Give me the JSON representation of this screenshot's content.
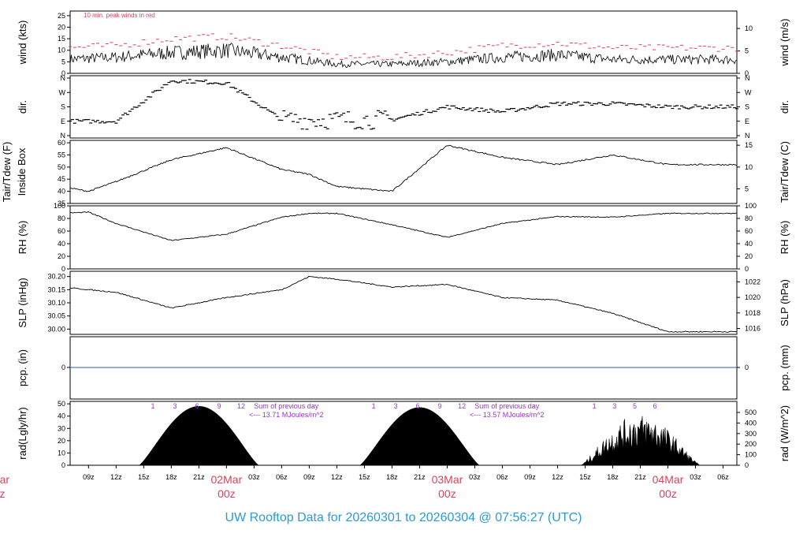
{
  "footer": {
    "title": "UW Rooftop Data for 20260301  to  20260304 @ 07:56:27  (UTC)"
  },
  "x_axis": {
    "hour_labels": [
      "09z",
      "12z",
      "15z",
      "18z",
      "21z",
      "03z",
      "06z",
      "09z",
      "12z",
      "15z",
      "18z",
      "21z",
      "03z",
      "06z",
      "09z",
      "12z",
      "15z",
      "18z",
      "21z",
      "03z",
      "06z"
    ],
    "date_labels": [
      {
        "date": "02Mar",
        "time": "00z"
      },
      {
        "date": "03Mar",
        "time": "00z"
      },
      {
        "date": "04Mar",
        "time": "00z"
      }
    ],
    "cut_date": "Mar",
    "cut_time": "z"
  },
  "colors": {
    "wind": "#000000",
    "gust": "#e0405a",
    "precip": "#2a5db0",
    "date": "#e0405a",
    "annotation": "#9933cc",
    "title": "#2a9bd6"
  },
  "chart_data": [
    {
      "type": "line",
      "panel": "wind",
      "ylabel_left": "wind (kts)",
      "ylabel_right": "wind (m/s)",
      "yticks_left": [
        "0",
        "5",
        "10",
        "15",
        "20",
        "25"
      ],
      "ylim": [
        0,
        27
      ],
      "yticks_right": [
        "0",
        "5",
        "10"
      ],
      "right_values": [
        0,
        5,
        10
      ],
      "annotation": "10 min. peak winds in red",
      "x": [
        0,
        6,
        12,
        18,
        24,
        30,
        36,
        42,
        48,
        54,
        60,
        66,
        72
      ],
      "series": [
        {
          "values": [
            6,
            6,
            7,
            9,
            10,
            7,
            4,
            4,
            5,
            7,
            8,
            6,
            6
          ]
        },
        {
          "values": [
            11,
            11,
            12,
            15,
            16,
            12,
            7,
            7,
            9,
            12,
            13,
            11,
            11
          ]
        }
      ]
    },
    {
      "type": "scatter",
      "panel": "direction",
      "ylabel_left": "dir.",
      "ylabel_right": "dir.",
      "yticks_left": [
        "N",
        "E",
        "S",
        "W",
        "N"
      ],
      "x": [
        0,
        6,
        12,
        18,
        24,
        30,
        36,
        42,
        48,
        54,
        60,
        66,
        72
      ],
      "values": [
        360,
        90,
        90,
        345,
        330,
        100,
        100,
        100,
        180,
        150,
        200,
        200,
        180
      ]
    },
    {
      "type": "line",
      "panel": "temperature",
      "ylabel_left": "Tair/Tdew (F)",
      "ylabel_left2": "Inside Box",
      "ylabel_right": "Tair/Tdew (C)",
      "yticks_left": [
        "35",
        "40",
        "45",
        "50",
        "55",
        "60"
      ],
      "ylim": [
        35,
        61
      ],
      "yticks_right": [
        "5",
        "10",
        "15"
      ],
      "right_values": [
        5,
        10,
        15
      ],
      "x": [
        0,
        6,
        9,
        12,
        18,
        24,
        30,
        33,
        36,
        42,
        48,
        54,
        60,
        66,
        72
      ],
      "values": [
        44,
        42,
        40,
        44,
        53,
        58,
        49,
        47,
        42,
        40,
        59,
        54,
        51,
        55,
        51
      ]
    },
    {
      "type": "line",
      "panel": "humidity",
      "ylabel_left": "RH (%)",
      "ylabel_right": "RH (%)",
      "yticks_left": [
        "0",
        "20",
        "40",
        "60",
        "80",
        "100"
      ],
      "ylim": [
        0,
        100
      ],
      "yticks_right": [
        "0",
        "20",
        "40",
        "60",
        "80",
        "100"
      ],
      "right_values": [
        0,
        20,
        40,
        60,
        80,
        100
      ],
      "x": [
        0,
        6,
        9,
        12,
        18,
        24,
        30,
        33,
        36,
        42,
        48,
        54,
        60,
        66,
        72
      ],
      "values": [
        80,
        88,
        90,
        72,
        45,
        55,
        82,
        88,
        88,
        70,
        50,
        72,
        83,
        82,
        88
      ]
    },
    {
      "type": "line",
      "panel": "pressure",
      "ylabel_left": "SLP (inHg)",
      "ylabel_right": "SLP (hPa)",
      "yticks_left": [
        "30.00",
        "30.05",
        "30.10",
        "30.15",
        "30.20"
      ],
      "ylim": [
        29.98,
        30.22
      ],
      "yticks_right": [
        "1016",
        "1018",
        "1020",
        "1022"
      ],
      "right_values": [
        1016,
        1018,
        1020,
        1022
      ],
      "x": [
        0,
        6,
        12,
        18,
        24,
        30,
        33,
        36,
        42,
        48,
        54,
        60,
        66,
        72
      ],
      "values": [
        30.16,
        30.16,
        30.14,
        30.08,
        30.12,
        30.15,
        30.2,
        30.19,
        30.16,
        30.17,
        30.12,
        30.11,
        30.06,
        29.99
      ]
    },
    {
      "type": "line",
      "panel": "precipitation",
      "ylabel_left": "pcp. (in)",
      "ylabel_right": "pcp. (mm)",
      "yticks_left": [
        "0"
      ],
      "yticks_right": [
        "0"
      ],
      "x": [
        0,
        72
      ],
      "values": [
        0,
        0
      ]
    },
    {
      "type": "area",
      "panel": "radiation",
      "ylabel_left": "rad(Lgly/hr)",
      "ylabel_right": "rad (W/m^2)",
      "yticks_left": [
        "0",
        "10",
        "20",
        "30",
        "40",
        "50"
      ],
      "ylim": [
        0,
        52
      ],
      "yticks_right": [
        "0",
        "100",
        "200",
        "300",
        "400",
        "500"
      ],
      "right_values": [
        0,
        100,
        200,
        300,
        400,
        500
      ],
      "days": [
        {
          "start": 14.5,
          "end": 27.5,
          "peak": 48,
          "label": "Sum of previous day",
          "label2": "<--- 13.71 MJoules/m^2",
          "markers": [
            "1",
            "3",
            "6",
            "9",
            "12"
          ]
        },
        {
          "start": 38.5,
          "end": 51.5,
          "peak": 47,
          "label": "Sum of previous day",
          "label2": "<--- 13.57 MJoules/m^2",
          "markers": [
            "1",
            "3",
            "6",
            "9",
            "12"
          ]
        },
        {
          "start": 62.5,
          "end": 75.5,
          "peak": 38,
          "markers": [
            "1",
            "3",
            "5",
            "6"
          ]
        }
      ]
    }
  ]
}
